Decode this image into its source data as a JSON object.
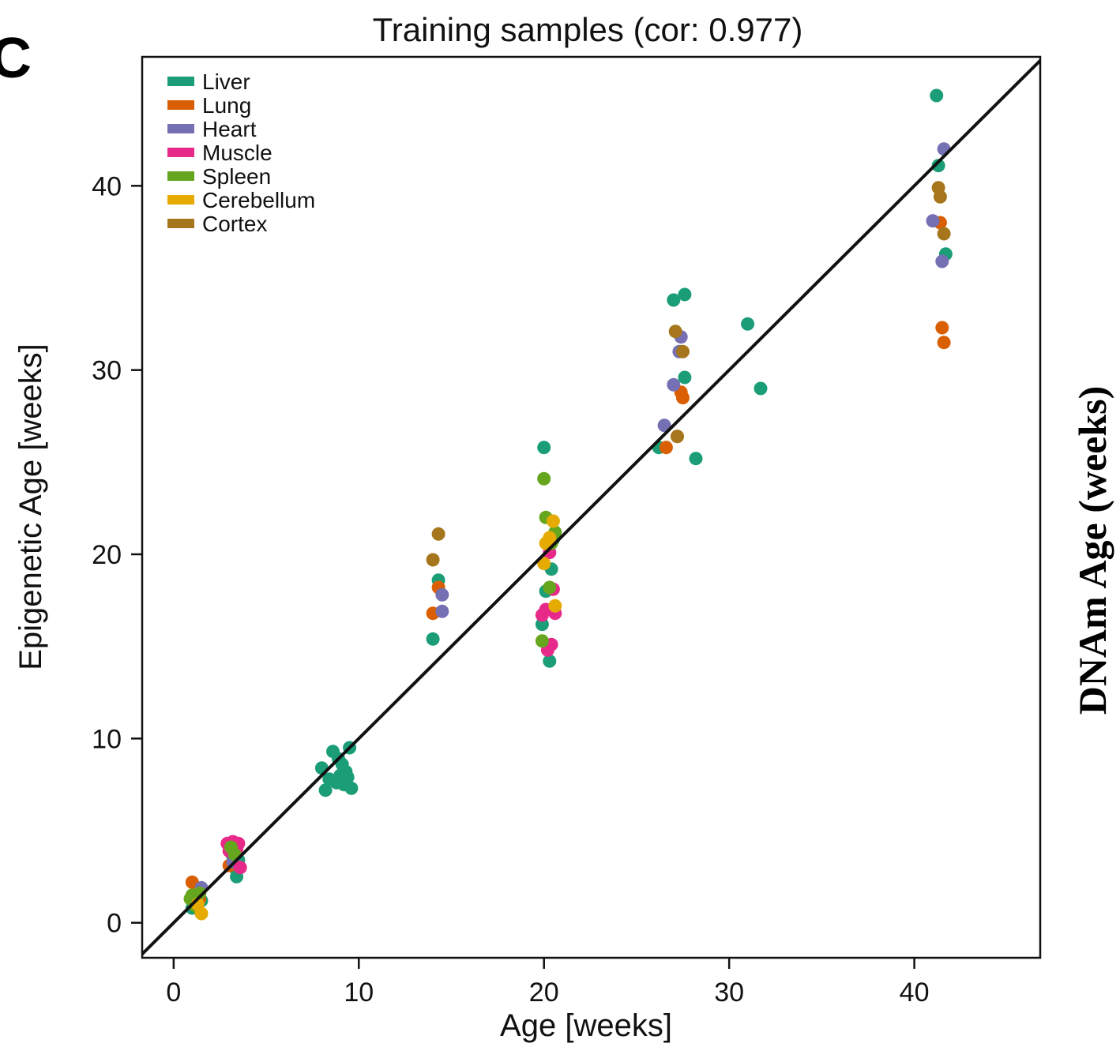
{
  "panel_letter": "C",
  "right_label": "DNAm Age (weeks)",
  "chart_data": {
    "type": "scatter",
    "title": "Training samples (cor: 0.977)",
    "xlabel": "Age [weeks]",
    "ylabel": "Epigenetic Age [weeks]",
    "xlim": [
      -1.7,
      46.8
    ],
    "ylim": [
      -1.9,
      47.0
    ],
    "xticks": [
      0,
      10,
      20,
      30,
      40
    ],
    "yticks": [
      0,
      10,
      20,
      30,
      40
    ],
    "xtick_labels": [
      "0",
      "10",
      "20",
      "30",
      "40"
    ],
    "ytick_labels": [
      "0",
      "10",
      "20",
      "30",
      "40"
    ],
    "grid": false,
    "legend_position": "top-left",
    "reference_line": {
      "slope": 1,
      "intercept": 0,
      "color": "#111111"
    },
    "series": [
      {
        "name": "Liver",
        "color": "#1b9e77",
        "points": [
          [
            1.0,
            0.8
          ],
          [
            1.2,
            1.1
          ],
          [
            1.5,
            1.2
          ],
          [
            3.3,
            3.0
          ],
          [
            3.4,
            2.5
          ],
          [
            3.5,
            3.4
          ],
          [
            3.2,
            3.6
          ],
          [
            8.0,
            8.4
          ],
          [
            8.2,
            7.2
          ],
          [
            8.4,
            7.8
          ],
          [
            8.6,
            9.3
          ],
          [
            8.8,
            7.6
          ],
          [
            9.0,
            8.0
          ],
          [
            9.1,
            8.6
          ],
          [
            9.2,
            7.5
          ],
          [
            9.3,
            8.2
          ],
          [
            9.4,
            7.9
          ],
          [
            9.5,
            9.5
          ],
          [
            9.6,
            7.3
          ],
          [
            8.9,
            8.9
          ],
          [
            14.0,
            15.4
          ],
          [
            14.3,
            18.6
          ],
          [
            19.9,
            16.2
          ],
          [
            20.1,
            18.0
          ],
          [
            20.3,
            14.2
          ],
          [
            20.4,
            19.2
          ],
          [
            20.0,
            25.8
          ],
          [
            20.5,
            20.8
          ],
          [
            26.2,
            25.8
          ],
          [
            27.0,
            33.8
          ],
          [
            27.6,
            34.1
          ],
          [
            27.6,
            29.6
          ],
          [
            28.2,
            25.2
          ],
          [
            31.0,
            32.5
          ],
          [
            31.7,
            29.0
          ],
          [
            41.2,
            44.9
          ],
          [
            41.3,
            41.1
          ],
          [
            41.7,
            36.3
          ]
        ]
      },
      {
        "name": "Lung",
        "color": "#d95f02",
        "points": [
          [
            1.0,
            2.2
          ],
          [
            1.4,
            1.3
          ],
          [
            3.0,
            3.1
          ],
          [
            14.0,
            16.8
          ],
          [
            14.3,
            18.2
          ],
          [
            26.6,
            25.8
          ],
          [
            27.2,
            26.4
          ],
          [
            27.4,
            28.8
          ],
          [
            27.5,
            28.5
          ],
          [
            41.4,
            38.0
          ],
          [
            41.5,
            32.3
          ],
          [
            41.6,
            31.5
          ]
        ]
      },
      {
        "name": "Heart",
        "color": "#7570b3",
        "points": [
          [
            1.5,
            1.9
          ],
          [
            3.2,
            3.3
          ],
          [
            14.5,
            17.8
          ],
          [
            14.5,
            16.9
          ],
          [
            26.5,
            27.0
          ],
          [
            27.0,
            29.2
          ],
          [
            27.3,
            31.0
          ],
          [
            27.4,
            31.8
          ],
          [
            41.0,
            38.1
          ],
          [
            41.5,
            35.9
          ],
          [
            41.6,
            42.0
          ]
        ]
      },
      {
        "name": "Muscle",
        "color": "#e7298a",
        "points": [
          [
            1.2,
            1.5
          ],
          [
            2.9,
            4.3
          ],
          [
            3.0,
            3.9
          ],
          [
            3.2,
            4.4
          ],
          [
            3.5,
            4.3
          ],
          [
            3.6,
            3.0
          ],
          [
            3.4,
            4.0
          ],
          [
            19.9,
            16.7
          ],
          [
            20.2,
            14.8
          ],
          [
            20.4,
            15.1
          ],
          [
            20.5,
            18.1
          ],
          [
            20.6,
            16.8
          ],
          [
            20.3,
            20.1
          ],
          [
            20.1,
            17.0
          ]
        ]
      },
      {
        "name": "Spleen",
        "color": "#66a61e",
        "points": [
          [
            0.9,
            1.3
          ],
          [
            1.0,
            1.5
          ],
          [
            1.2,
            0.9
          ],
          [
            1.4,
            1.6
          ],
          [
            3.1,
            4.1
          ],
          [
            3.3,
            3.7
          ],
          [
            19.9,
            15.3
          ],
          [
            20.0,
            24.1
          ],
          [
            20.1,
            22.0
          ],
          [
            20.3,
            18.2
          ],
          [
            20.4,
            20.6
          ],
          [
            20.6,
            21.2
          ]
        ]
      },
      {
        "name": "Cerebellum",
        "color": "#e6ab02",
        "points": [
          [
            1.5,
            0.5
          ],
          [
            1.3,
            1.0
          ],
          [
            20.0,
            19.5
          ],
          [
            20.1,
            20.6
          ],
          [
            20.3,
            20.9
          ],
          [
            20.5,
            21.8
          ],
          [
            20.6,
            17.2
          ]
        ]
      },
      {
        "name": "Cortex",
        "color": "#a6761d",
        "points": [
          [
            14.0,
            19.7
          ],
          [
            14.3,
            21.1
          ],
          [
            27.1,
            32.1
          ],
          [
            27.2,
            26.4
          ],
          [
            27.5,
            31.0
          ],
          [
            41.3,
            39.9
          ],
          [
            41.4,
            39.4
          ],
          [
            41.6,
            37.4
          ]
        ]
      }
    ]
  }
}
